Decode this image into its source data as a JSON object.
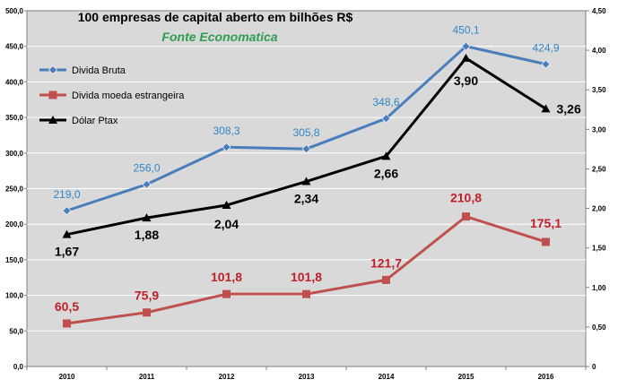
{
  "chart_data": {
    "type": "line",
    "title": "100 empresas de capital aberto  em  bilhões R$",
    "subtitle": "Fonte Economatica",
    "categories": [
      "2010",
      "2011",
      "2012",
      "2013",
      "2014",
      "2015",
      "2016"
    ],
    "y_left": {
      "ticks": [
        "0,0",
        "50,0",
        "100,0",
        "150,0",
        "200,0",
        "250,0",
        "300,0",
        "350,0",
        "400,0",
        "450,0",
        "500,0"
      ],
      "range": [
        0,
        500
      ]
    },
    "y_right": {
      "ticks": [
        "0",
        "0,50",
        "1,00",
        "1,50",
        "2,00",
        "2,50",
        "3,00",
        "3,50",
        "4,00",
        "4,50"
      ],
      "range": [
        0,
        4.5
      ]
    },
    "series": [
      {
        "name": "Divida Bruta",
        "axis": "left",
        "color": "#4a7ebb",
        "marker": "diamond",
        "values": [
          219.0,
          256.0,
          308.3,
          305.8,
          348.6,
          450.1,
          424.9
        ],
        "labels": [
          "219,0",
          "256,0",
          "308,3",
          "305,8",
          "348,6",
          "450,1",
          "424,9"
        ],
        "label_color": "#2f86c8"
      },
      {
        "name": "Divida moeda estrangeira",
        "axis": "left",
        "color": "#c0504d",
        "marker": "square",
        "values": [
          60.5,
          75.9,
          101.8,
          101.8,
          121.7,
          210.8,
          175.1
        ],
        "labels": [
          "60,5",
          "75,9",
          "101,8",
          "101,8",
          "121,7",
          "210,8",
          "175,1"
        ],
        "label_color": "#c0202a"
      },
      {
        "name": "Dólar Ptax",
        "axis": "right",
        "color": "#000000",
        "marker": "triangle",
        "values": [
          1.67,
          1.88,
          2.04,
          2.34,
          2.66,
          3.9,
          3.26
        ],
        "labels": [
          "1,67",
          "1,88",
          "2,04",
          "2,34",
          "2,66",
          "3,90",
          "3,26"
        ],
        "label_color": "#000000"
      }
    ],
    "grid": true,
    "legend": "top-left"
  }
}
